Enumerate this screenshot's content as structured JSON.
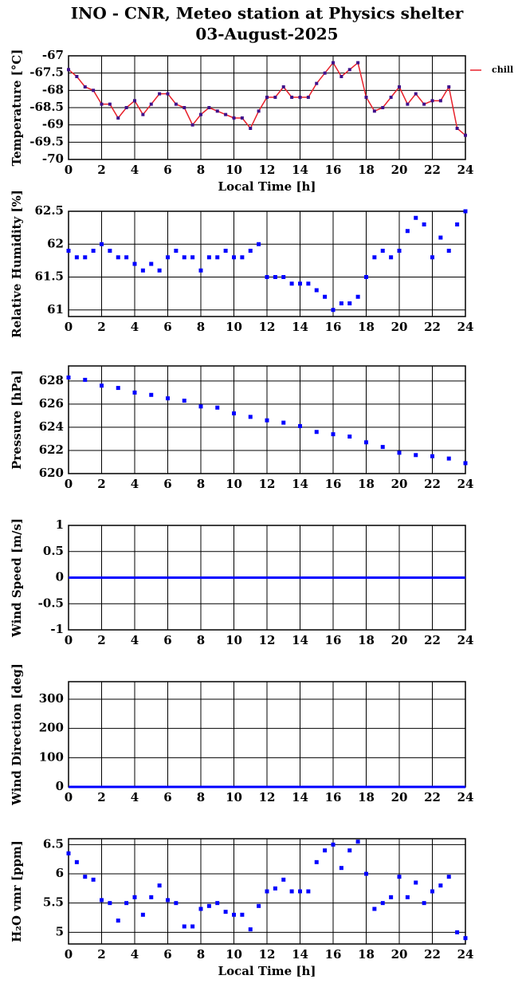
{
  "title": "INO - CNR, Meteo station at Physics shelter",
  "subtitle": "03-August-2025",
  "chart_data": [
    {
      "type": "line",
      "ylabel": "Temperature [°C]",
      "xlabel": "Local Time [h]",
      "legend": "right",
      "markers": true,
      "x": [
        0,
        0.5,
        1,
        1.5,
        2,
        2.5,
        3,
        3.5,
        4,
        4.5,
        5,
        5.5,
        6,
        6.5,
        7,
        7.5,
        8,
        8.5,
        9,
        9.5,
        10,
        10.5,
        11,
        11.5,
        12,
        12.5,
        13,
        13.5,
        14,
        14.5,
        15,
        15.5,
        16,
        16.5,
        17,
        17.5,
        18,
        18.5,
        19,
        19.5,
        20,
        20.5,
        21,
        21.5,
        22,
        22.5,
        23,
        23.5,
        24
      ],
      "series": [
        {
          "name": "chill",
          "color": "#e8202a",
          "marker_color": "#40108a",
          "values": [
            -67.4,
            -67.6,
            -67.9,
            -68.0,
            -68.4,
            -68.4,
            -68.8,
            -68.5,
            -68.3,
            -68.7,
            -68.4,
            -68.1,
            -68.1,
            -68.4,
            -68.5,
            -69.0,
            -68.7,
            -68.5,
            -68.6,
            -68.7,
            -68.8,
            -68.8,
            -69.1,
            -68.6,
            -68.2,
            -68.2,
            -67.9,
            -68.2,
            -68.2,
            -68.2,
            -67.8,
            -67.5,
            -67.2,
            -67.6,
            -67.4,
            -67.2,
            -68.2,
            -68.6,
            -68.5,
            -68.2,
            -67.9,
            -68.4,
            -68.1,
            -68.4,
            -68.3,
            -68.3,
            -67.9,
            -69.1,
            -69.3
          ]
        }
      ],
      "xlim": [
        0,
        24
      ],
      "xticks": [
        0,
        2,
        4,
        6,
        8,
        10,
        12,
        14,
        16,
        18,
        20,
        22,
        24
      ],
      "ylim": [
        -70,
        -67
      ],
      "yticks": [
        -70,
        -69.5,
        -69,
        -68.5,
        -68,
        -67.5,
        -67
      ],
      "grid": true
    },
    {
      "type": "scatter",
      "ylabel": "Relative Humidity [%]",
      "x": [
        0,
        0.5,
        1,
        1.5,
        2,
        2.5,
        3,
        3.5,
        4,
        4.5,
        5,
        5.5,
        6,
        6.5,
        7,
        7.5,
        8,
        8.5,
        9,
        9.5,
        10,
        10.5,
        11,
        11.5,
        12,
        12.5,
        13,
        13.5,
        14,
        14.5,
        15,
        15.5,
        16,
        16.5,
        17,
        17.5,
        18,
        18.5,
        19,
        19.5,
        20,
        20.5,
        21,
        21.5,
        22,
        22.5,
        23,
        23.5,
        24
      ],
      "series": [
        {
          "color": "#0000ff",
          "values": [
            61.9,
            61.8,
            61.8,
            61.9,
            62.0,
            61.9,
            61.8,
            61.8,
            61.7,
            61.6,
            61.7,
            61.6,
            61.8,
            61.9,
            61.8,
            61.8,
            61.6,
            61.8,
            61.8,
            61.9,
            61.8,
            61.8,
            61.9,
            62.0,
            61.5,
            61.5,
            61.5,
            61.4,
            61.4,
            61.4,
            61.3,
            61.2,
            61.0,
            61.1,
            61.1,
            61.2,
            61.5,
            61.8,
            61.9,
            61.8,
            61.9,
            62.2,
            62.4,
            62.3,
            61.8,
            62.1,
            61.9,
            62.3,
            62.5
          ]
        }
      ],
      "xlim": [
        0,
        24
      ],
      "xticks": [
        0,
        2,
        4,
        6,
        8,
        10,
        12,
        14,
        16,
        18,
        20,
        22,
        24
      ],
      "ylim": [
        60.9,
        62.5
      ],
      "yticks": [
        61,
        61.5,
        62,
        62.5
      ],
      "grid": true
    },
    {
      "type": "scatter",
      "ylabel": "Pressure [hPa]",
      "x": [
        0,
        1,
        2,
        3,
        4,
        5,
        6,
        7,
        8,
        9,
        10,
        11,
        12,
        13,
        14,
        15,
        16,
        17,
        18,
        19,
        20,
        21,
        22,
        23,
        24
      ],
      "series": [
        {
          "color": "#0000ff",
          "values": [
            628.3,
            628.1,
            627.6,
            627.4,
            627.0,
            626.8,
            626.5,
            626.3,
            625.8,
            625.7,
            625.2,
            624.9,
            624.6,
            624.4,
            624.1,
            623.6,
            623.4,
            623.2,
            622.7,
            622.3,
            621.8,
            621.6,
            621.5,
            621.3,
            620.9
          ]
        }
      ],
      "xlim": [
        0,
        24
      ],
      "xticks": [
        0,
        2,
        4,
        6,
        8,
        10,
        12,
        14,
        16,
        18,
        20,
        22,
        24
      ],
      "ylim": [
        620,
        629.3
      ],
      "yticks": [
        620,
        622,
        624,
        626,
        628
      ],
      "grid": true
    },
    {
      "type": "line",
      "ylabel": "Wind Speed [m/s]",
      "x": [
        0,
        24
      ],
      "series": [
        {
          "color": "#0000ff",
          "values": [
            0,
            0
          ]
        }
      ],
      "xlim": [
        0,
        24
      ],
      "xticks": [
        0,
        2,
        4,
        6,
        8,
        10,
        12,
        14,
        16,
        18,
        20,
        22,
        24
      ],
      "ylim": [
        -1,
        1
      ],
      "yticks": [
        -1,
        -0.5,
        0,
        0.5,
        1
      ],
      "grid": true
    },
    {
      "type": "line",
      "ylabel": "Wind Direction [deg]",
      "x": [
        0,
        24
      ],
      "series": [
        {
          "color": "#0000ff",
          "values": [
            0,
            0
          ]
        }
      ],
      "xlim": [
        0,
        24
      ],
      "xticks": [
        0,
        2,
        4,
        6,
        8,
        10,
        12,
        14,
        16,
        18,
        20,
        22,
        24
      ],
      "ylim": [
        0,
        360
      ],
      "yticks": [
        0,
        100,
        200,
        300
      ],
      "grid": true
    },
    {
      "type": "scatter",
      "ylabel": "H₂O vmr [ppm]",
      "xlabel": "Local Time [h]",
      "x": [
        0,
        0.5,
        1,
        1.5,
        2,
        2.5,
        3,
        3.5,
        4,
        4.5,
        5,
        5.5,
        6,
        6.5,
        7,
        7.5,
        8,
        8.5,
        9,
        9.5,
        10,
        10.5,
        11,
        11.5,
        12,
        12.5,
        13,
        13.5,
        14,
        14.5,
        15,
        15.5,
        16,
        16.5,
        17,
        17.5,
        18,
        18.5,
        19,
        19.5,
        20,
        20.5,
        21,
        21.5,
        22,
        22.5,
        23,
        23.5,
        24
      ],
      "series": [
        {
          "color": "#0000ff",
          "values": [
            6.35,
            6.2,
            5.95,
            5.9,
            5.55,
            5.5,
            5.2,
            5.5,
            5.6,
            5.3,
            5.6,
            5.8,
            5.55,
            5.5,
            5.1,
            5.1,
            5.4,
            5.45,
            5.5,
            5.35,
            5.3,
            5.3,
            5.05,
            5.45,
            5.7,
            5.75,
            5.9,
            5.7,
            5.7,
            5.7,
            6.2,
            6.4,
            6.5,
            6.1,
            6.4,
            6.55,
            6.0,
            5.4,
            5.5,
            5.6,
            5.95,
            5.6,
            5.85,
            5.5,
            5.7,
            5.8,
            5.95,
            5.0,
            4.9
          ]
        }
      ],
      "xlim": [
        0,
        24
      ],
      "xticks": [
        0,
        2,
        4,
        6,
        8,
        10,
        12,
        14,
        16,
        18,
        20,
        22,
        24
      ],
      "ylim": [
        4.8,
        6.6
      ],
      "yticks": [
        5,
        5.5,
        6,
        6.5
      ],
      "grid": true
    }
  ]
}
